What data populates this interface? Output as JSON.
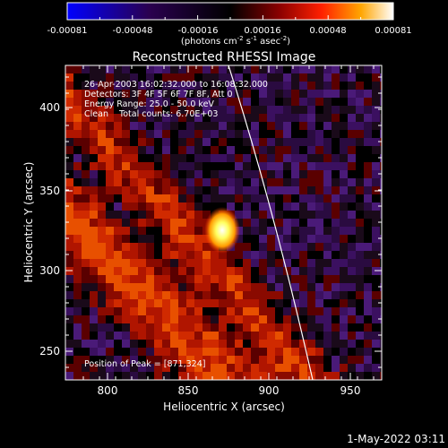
{
  "colorbar": {
    "tick_labels": [
      "-0.00081",
      "-0.00048",
      "-0.00016",
      "0.00016",
      "0.00048",
      "0.00081"
    ],
    "units_prefix": "(photons cm",
    "units_exp1": "-2",
    "units_mid": " s",
    "units_exp2": "-1",
    "units_mid2": " asec",
    "units_exp3": "-2",
    "units_suffix": ")",
    "colors": [
      "#0000ff",
      "#2a003a",
      "#000000",
      "#8a0000",
      "#ff1a00",
      "#ffa000",
      "#ffff80",
      "#ffffff"
    ]
  },
  "plot": {
    "title": "Reconstructed RHESSI Image",
    "xlabel": "Heliocentric X (arcsec)",
    "ylabel": "Heliocentric Y (arcsec)",
    "x_ticks": [
      "800",
      "850",
      "900",
      "950"
    ],
    "y_ticks": [
      "250",
      "300",
      "350",
      "400"
    ],
    "xlim": [
      775,
      967
    ],
    "ylim": [
      233,
      425
    ]
  },
  "annotation": {
    "line1": "26-Apr-2003 16:02:32.000 to 16:08:32.000",
    "line2": "Detectors: 3F 4F 5F 6F 7F 8F, Att 0",
    "line3": "Energy Range: 25.0 - 50.0 keV",
    "line4": "Clean    Total counts: 6.70E+03",
    "peak": "Position of Peak = [871,324]"
  },
  "footer": {
    "timestamp": "1-May-2022 03:11"
  }
}
